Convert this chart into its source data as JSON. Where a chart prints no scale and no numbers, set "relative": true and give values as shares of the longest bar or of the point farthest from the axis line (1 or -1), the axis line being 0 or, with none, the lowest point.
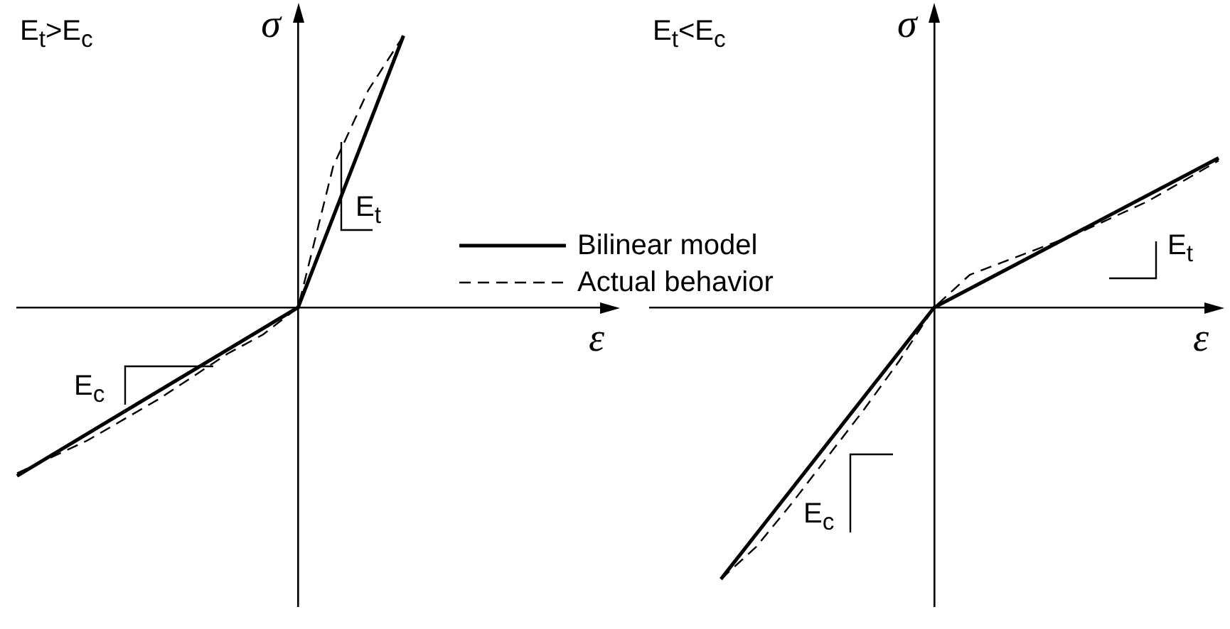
{
  "chart_data": [
    {
      "type": "line",
      "title": "E$_{t}$>E$_{c}$",
      "xlabel": "ε",
      "ylabel": "σ",
      "relative": true,
      "legend": "right",
      "categories": [
        null,
        null,
        null,
        null,
        null,
        null,
        null,
        null,
        null,
        null,
        null,
        null,
        null,
        null,
        null,
        null,
        null,
        null
      ],
      "series": [
        {
          "name": "Bilinear model",
          "color": "#000000",
          "line_style": "solid",
          "values": [
            -0.62,
            null,
            null,
            null,
            null,
            null,
            null,
            null,
            0,
            null,
            null,
            1,
            null,
            null,
            null,
            null,
            null,
            null
          ]
        },
        {
          "name": "Actual behavior",
          "color": "#000000",
          "line_style": "dashed",
          "values": [
            -0.61,
            null,
            -0.49,
            null,
            -0.34,
            null,
            -0.17,
            -0.1,
            0,
            0.52,
            0.8,
            1,
            null,
            null,
            null,
            null,
            null,
            null
          ]
        }
      ],
      "annotations": [
        "E$_{t}$",
        "E$_{c}$"
      ]
    },
    {
      "type": "line",
      "title": "E$_{t}$<E$_{c}$",
      "xlabel": "ε",
      "ylabel": "σ",
      "relative": true,
      "categories": [
        null,
        null,
        null,
        null,
        null,
        null,
        null,
        null,
        null,
        null,
        null,
        null,
        null,
        null,
        null,
        null,
        null
      ],
      "series": [
        {
          "color": "#000000",
          "line_style": "solid",
          "values": [
            null,
            null,
            -1,
            null,
            null,
            null,
            null,
            null,
            0,
            null,
            null,
            null,
            null,
            null,
            null,
            null,
            0.55
          ]
        },
        {
          "color": "#000000",
          "line_style": "dashed",
          "values": [
            null,
            null,
            -1,
            -0.88,
            -0.72,
            -0.55,
            -0.38,
            -0.2,
            0,
            0.12,
            0.17,
            null,
            0.27,
            null,
            0.39,
            null,
            0.54
          ]
        }
      ],
      "annotations": [
        "E$_{t}$",
        "E$_{c}$"
      ]
    }
  ]
}
